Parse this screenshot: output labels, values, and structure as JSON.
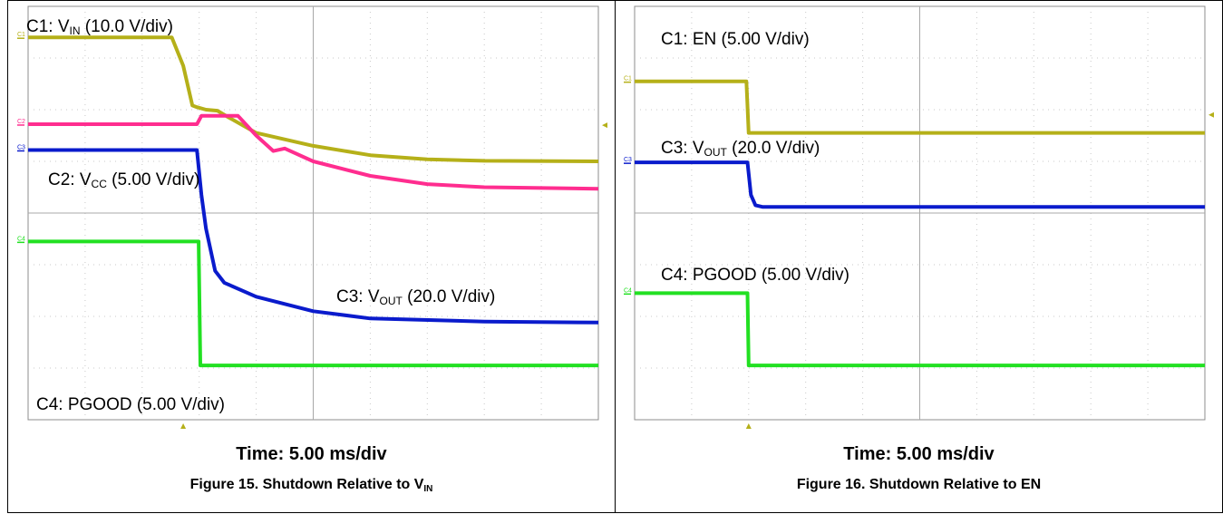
{
  "chart_data": [
    {
      "type": "line",
      "caption": {
        "prefix": "Figure 15. Shutdown Relative to V",
        "sub": "IN"
      },
      "time_label": "Time: 5.00 ms/div",
      "x_unit": "ms",
      "x_per_div": 5.0,
      "x_divisions": 10,
      "y_divisions": 8,
      "grid": true,
      "series": [
        {
          "channel": "C1",
          "color": "#b5b019",
          "marker_label": "C1",
          "label": {
            "prefix": "C1: V",
            "sub": "IN",
            "suffix": " (10.0 V/div)"
          },
          "volts_per_div": 10.0,
          "points": [
            [
              0,
              3.4
            ],
            [
              12.6,
              3.4
            ],
            [
              13.6,
              2.85
            ],
            [
              14.4,
              2.08
            ],
            [
              14.8,
              2.05
            ],
            [
              15.6,
              2.0
            ],
            [
              16.6,
              1.98
            ],
            [
              17.6,
              1.85
            ],
            [
              20,
              1.55
            ],
            [
              25,
              1.3
            ],
            [
              30,
              1.12
            ],
            [
              35,
              1.04
            ],
            [
              40,
              1.01
            ],
            [
              50,
              1.0
            ]
          ]
        },
        {
          "channel": "C2",
          "color": "#ff2d8f",
          "marker_label": "C2",
          "label": {
            "prefix": "C2: V",
            "sub": "CC",
            "suffix": " (5.00 V/div)"
          },
          "volts_per_div": 5.0,
          "points": [
            [
              0,
              1.72
            ],
            [
              14.8,
              1.72
            ],
            [
              15.2,
              1.88
            ],
            [
              18.4,
              1.88
            ],
            [
              20,
              1.5
            ],
            [
              21.5,
              1.2
            ],
            [
              22.5,
              1.25
            ],
            [
              25,
              1.0
            ],
            [
              30,
              0.72
            ],
            [
              35,
              0.56
            ],
            [
              40,
              0.5
            ],
            [
              50,
              0.47
            ]
          ]
        },
        {
          "channel": "C3",
          "color": "#0a1bcc",
          "marker_label": "C3",
          "label": {
            "prefix": "C3: V",
            "sub": "OUT",
            "suffix": " (20.0 V/div)"
          },
          "volts_per_div": 20.0,
          "points": [
            [
              0,
              1.22
            ],
            [
              14.8,
              1.22
            ],
            [
              15.2,
              0.35
            ],
            [
              15.6,
              -0.3
            ],
            [
              16.4,
              -1.12
            ],
            [
              17.2,
              -1.35
            ],
            [
              20,
              -1.62
            ],
            [
              25,
              -1.9
            ],
            [
              30,
              -2.04
            ],
            [
              40,
              -2.1
            ],
            [
              50,
              -2.12
            ]
          ]
        },
        {
          "channel": "C4",
          "color": "#22e022",
          "marker_label": "C4",
          "label": {
            "prefix": "C4: PGOOD (5.00 V/div)",
            "sub": "",
            "suffix": ""
          },
          "volts_per_div": 5.0,
          "points": [
            [
              0,
              -0.55
            ],
            [
              14.95,
              -0.55
            ],
            [
              15.1,
              -2.95
            ],
            [
              50,
              -2.95
            ]
          ]
        }
      ]
    },
    {
      "type": "line",
      "caption": {
        "prefix": "Figure 16. Shutdown Relative to EN",
        "sub": ""
      },
      "time_label": "Time: 5.00 ms/div",
      "x_unit": "ms",
      "x_per_div": 5.0,
      "x_divisions": 10,
      "y_divisions": 8,
      "grid": true,
      "series": [
        {
          "channel": "C1",
          "color": "#b5b019",
          "marker_label": "C1",
          "label": {
            "prefix": "C1: EN (5.00 V/div)",
            "sub": "",
            "suffix": ""
          },
          "volts_per_div": 5.0,
          "points": [
            [
              0,
              2.55
            ],
            [
              9.8,
              2.55
            ],
            [
              10.0,
              1.55
            ],
            [
              50,
              1.55
            ]
          ]
        },
        {
          "channel": "C3",
          "color": "#0a1bcc",
          "marker_label": "C3",
          "label": {
            "prefix": "C3: V",
            "sub": "OUT",
            "suffix": " (20.0 V/div)"
          },
          "volts_per_div": 20.0,
          "points": [
            [
              0,
              0.98
            ],
            [
              9.9,
              0.98
            ],
            [
              10.2,
              0.35
            ],
            [
              10.6,
              0.15
            ],
            [
              11.2,
              0.12
            ],
            [
              50,
              0.12
            ]
          ]
        },
        {
          "channel": "C4",
          "color": "#22e022",
          "marker_label": "C4",
          "label": {
            "prefix": "C4: PGOOD (5.00 V/div)",
            "sub": "",
            "suffix": ""
          },
          "volts_per_div": 5.0,
          "points": [
            [
              0,
              -1.55
            ],
            [
              9.9,
              -1.55
            ],
            [
              10.0,
              -2.95
            ],
            [
              50,
              -2.95
            ]
          ]
        }
      ]
    }
  ]
}
